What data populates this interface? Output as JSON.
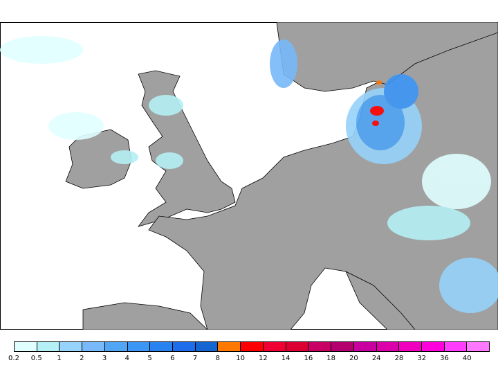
{
  "legend": {
    "labels": [
      "0.2",
      "0.5",
      "1",
      "2",
      "3",
      "4",
      "5",
      "6",
      "7",
      "8",
      "10",
      "12",
      "14",
      "16",
      "18",
      "20",
      "24",
      "28",
      "32",
      "36",
      "40"
    ],
    "colors": [
      "#e0ffff",
      "#b4f0f5",
      "#96d2fa",
      "#78b9fa",
      "#50a5f5",
      "#3c96f5",
      "#2882f0",
      "#1e6eeb",
      "#1464d2",
      "#ff7800",
      "#ff0000",
      "#f00032",
      "#dc0032",
      "#c80064",
      "#b4006e",
      "#c800a0",
      "#dc00aa",
      "#f000be",
      "#ff00dc",
      "#ff3cff",
      "#ff78ff"
    ]
  },
  "map": {
    "land_color": "#a0a0a0",
    "sea_color": "#ffffff"
  }
}
